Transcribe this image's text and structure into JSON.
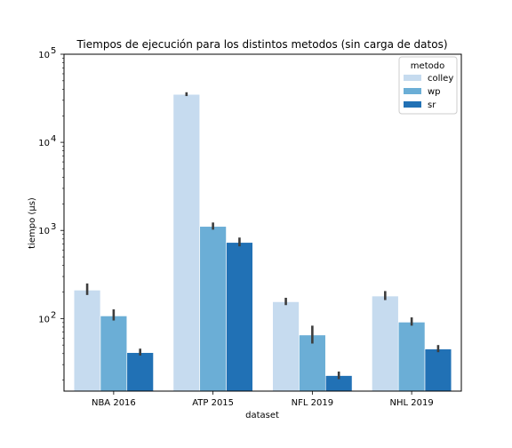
{
  "chart_data": {
    "type": "bar",
    "title": "Tiempos de ejecución para los distintos metodos (sin carga de datos)",
    "xlabel": "dataset",
    "ylabel": "tiempo (µs)",
    "yscale": "log",
    "ylim": [
      15,
      100000
    ],
    "yticks": [
      {
        "value": 100,
        "base": "10",
        "exp": "2"
      },
      {
        "value": 1000,
        "base": "10",
        "exp": "3"
      },
      {
        "value": 10000,
        "base": "10",
        "exp": "4"
      },
      {
        "value": 100000,
        "base": "10",
        "exp": "5"
      }
    ],
    "categories": [
      "NBA 2016",
      "ATP 2015",
      "NFL 2019",
      "NHL 2019"
    ],
    "legend": {
      "title": "metodo",
      "placement": "top-right"
    },
    "series": [
      {
        "name": "colley",
        "color": "#c6dbef",
        "values": [
          210,
          35000,
          155,
          180
        ],
        "err_low": [
          185,
          33500,
          142,
          162
        ],
        "err_high": [
          250,
          37000,
          172,
          205
        ]
      },
      {
        "name": "wp",
        "color": "#6baed6",
        "values": [
          107,
          1110,
          65,
          91
        ],
        "err_low": [
          95,
          1020,
          52,
          83
        ],
        "err_high": [
          127,
          1230,
          83,
          103
        ]
      },
      {
        "name": "sr",
        "color": "#2171b5",
        "values": [
          41,
          730,
          22.5,
          45
        ],
        "err_low": [
          38,
          660,
          20.5,
          41.5
        ],
        "err_high": [
          45.5,
          830,
          25,
          50
        ]
      }
    ]
  }
}
